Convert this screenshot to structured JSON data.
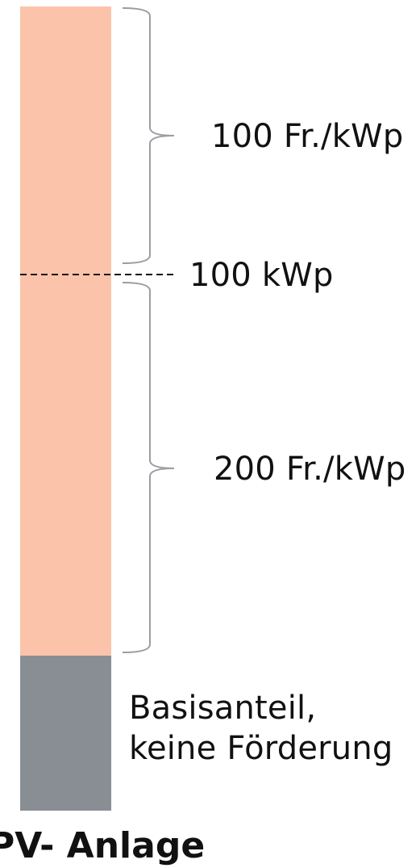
{
  "colors": {
    "subsidized": "#fbc4aa",
    "base": "#898e94",
    "bracket": "#9a9ea3",
    "dashed_line": "#111111",
    "text": "#111111"
  },
  "segments": {
    "upper_rate": "100 Fr./kWp",
    "threshold": "100 kWp",
    "lower_rate": "200 Fr./kWp",
    "base_line1": "Basisanteil,",
    "base_line2": "keine Förderung"
  },
  "footer": "PV- Anlage"
}
